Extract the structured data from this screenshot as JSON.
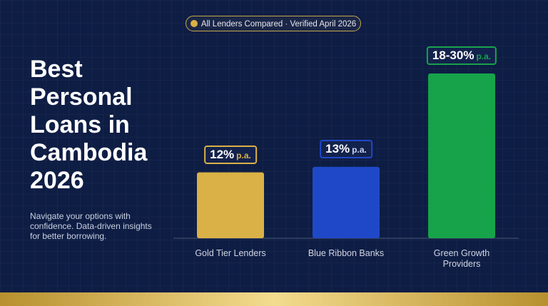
{
  "chart_data": {
    "type": "bar",
    "badge": "All Lenders Compared · Verified April 2026",
    "title": "Best Personal Loans in Cambodia 2026",
    "subtitle": "Navigate your options with confidence. Data-driven insights for better borrowing.",
    "categories": [
      "Gold Tier Lenders",
      "Blue Ribbon Banks",
      "Green Growth Providers"
    ],
    "values": [
      12,
      13,
      30
    ],
    "value_labels": [
      "12%",
      "13%",
      "18-30%"
    ],
    "value_suffix": "p.a.",
    "colors": [
      "#d9b146",
      "#1f48c9",
      "#17a34a"
    ]
  }
}
